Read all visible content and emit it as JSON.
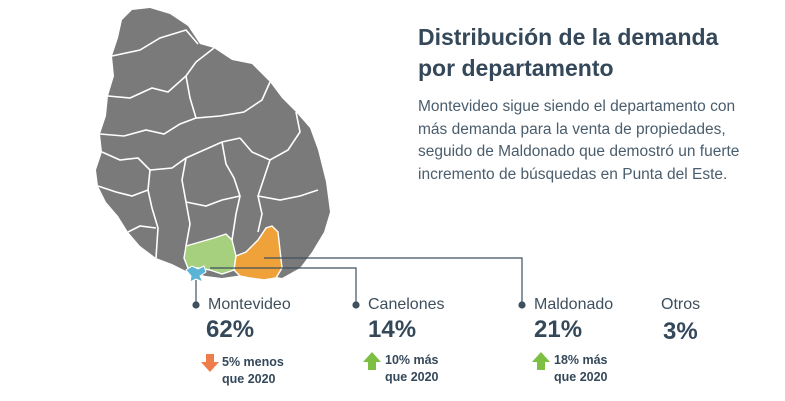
{
  "title": {
    "line1": "Distribución de la demanda",
    "line2": "por departamento"
  },
  "description": "Montevideo sigue siendo el departamento con más demanda para la venta de propiedades, seguido de Maldonado que demostró un fuerte incremento de búsquedas en Punta del Este.",
  "colors": {
    "map_gray": "#7a7a7a",
    "montevideo": "#5ab4d6",
    "canelones": "#a6cf7e",
    "maldonado": "#f0a23a",
    "arrow_down": "#ef7d4b",
    "arrow_up": "#7cbf42",
    "text_dark": "#34485a"
  },
  "regions": [
    {
      "name": "Montevideo",
      "percent": "62%",
      "change_line1": "5% menos",
      "change_line2": "que 2020",
      "trend": "down"
    },
    {
      "name": "Canelones",
      "percent": "14%",
      "change_line1": "10% más",
      "change_line2": "que 2020",
      "trend": "up"
    },
    {
      "name": "Maldonado",
      "percent": "21%",
      "change_line1": "18% más",
      "change_line2": "que 2020",
      "trend": "up"
    },
    {
      "name": "Otros",
      "percent": "3%"
    }
  ]
}
